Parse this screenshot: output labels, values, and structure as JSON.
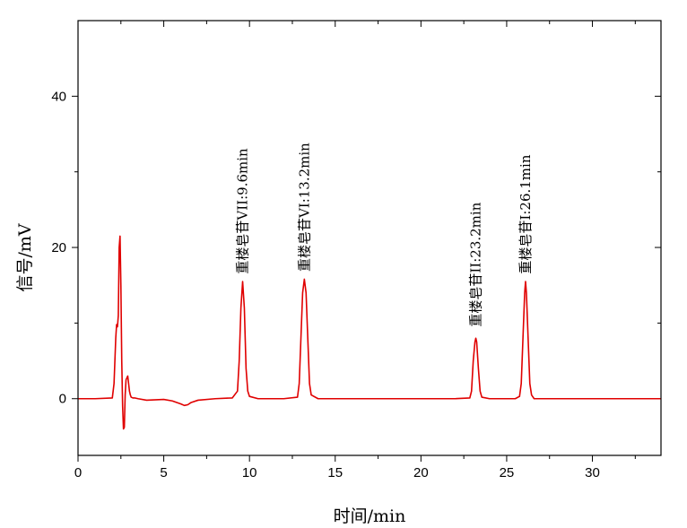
{
  "chart_data": {
    "type": "line",
    "xlabel": "时间/min",
    "ylabel": "信号/mV",
    "xlim": [
      0,
      34
    ],
    "ylim": [
      -7.5,
      50
    ],
    "x_ticks": [
      0,
      5,
      10,
      15,
      20,
      25,
      30
    ],
    "y_ticks": [
      0,
      20,
      40
    ],
    "grid": false,
    "line_color": "#e00000",
    "series": [
      {
        "x": [
          0,
          1,
          2.0,
          2.1,
          2.2,
          2.25,
          2.3,
          2.35,
          2.4,
          2.45,
          2.5,
          2.55,
          2.6,
          2.65,
          2.7,
          2.75,
          2.8,
          2.9,
          3.0,
          3.05,
          3.1,
          3.2,
          3.3,
          3.5,
          4.0,
          5.0,
          5.5,
          6.0,
          6.2,
          6.4,
          6.6,
          7.0,
          8.0,
          9.0,
          9.3,
          9.4,
          9.5,
          9.6,
          9.7,
          9.8,
          9.9,
          10.0,
          10.5,
          12.0,
          12.8,
          12.9,
          13.0,
          13.1,
          13.2,
          13.3,
          13.4,
          13.5,
          13.6,
          14.0,
          18.0,
          22.0,
          22.85,
          22.95,
          23.05,
          23.15,
          23.2,
          23.25,
          23.35,
          23.45,
          23.55,
          24.0,
          25.5,
          25.75,
          25.85,
          25.95,
          26.05,
          26.1,
          26.15,
          26.25,
          26.35,
          26.45,
          26.6,
          27.0,
          30.0,
          33.0,
          34.0
        ],
        "values": [
          0,
          0,
          0.1,
          2,
          8,
          9.8,
          9.5,
          11,
          20,
          21.5,
          15,
          5,
          -1,
          -4,
          -3.8,
          0.5,
          2.5,
          3,
          1,
          0.5,
          0.2,
          0.1,
          0.1,
          0,
          -0.2,
          -0.1,
          -0.3,
          -0.7,
          -0.9,
          -0.8,
          -0.5,
          -0.2,
          0,
          0.1,
          1,
          5,
          12,
          15.5,
          12,
          4,
          1,
          0.3,
          0,
          0,
          0.2,
          2,
          8,
          14,
          15.8,
          14,
          8,
          2,
          0.5,
          0,
          0,
          0,
          0.1,
          1,
          5,
          7.5,
          8,
          7.5,
          4,
          1,
          0.2,
          0,
          0,
          0.3,
          2,
          8,
          14,
          15.5,
          14,
          8,
          2,
          0.5,
          0,
          0,
          0,
          0,
          0
        ]
      }
    ],
    "annotations": [
      {
        "text": "重楼皂苷VII:9.6min",
        "x": 9.6,
        "y": 16.5
      },
      {
        "text": "重楼皂苷VI:13.2min",
        "x": 13.2,
        "y": 16.8
      },
      {
        "text": "重楼皂苷II:23.2min",
        "x": 23.2,
        "y": 9.5
      },
      {
        "text": "重楼皂苷I:26.1min",
        "x": 26.1,
        "y": 16.5
      }
    ]
  }
}
